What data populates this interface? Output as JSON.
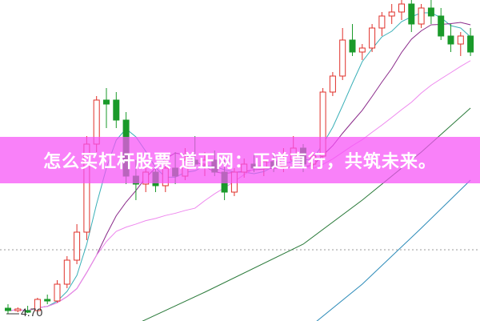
{
  "banner": {
    "text": "怎么买杠杆股票 道正网：正道直行，共筑未来。"
  },
  "chart_data": {
    "type": "candlestick",
    "title": "",
    "xlabel": "",
    "ylabel": "",
    "ylim": [
      4.6,
      8.6
    ],
    "grid": false,
    "reference_line": 5.48,
    "low_marker": {
      "label": "4.70",
      "value": 4.7
    },
    "colors": {
      "up": "#e0302a",
      "down": "#1a9a2a",
      "ma5": "#3bb0b8",
      "ma10": "#8a2a8a",
      "ma20": "#ee88ee",
      "ma_long1": "#2a7a3a",
      "ma_long2": "#2a8ab8"
    },
    "candles": [
      [
        4.75,
        4.8,
        4.68,
        4.72
      ],
      [
        4.72,
        4.76,
        4.7,
        4.74
      ],
      [
        4.72,
        4.78,
        4.69,
        4.7
      ],
      [
        4.72,
        4.88,
        4.7,
        4.86
      ],
      [
        4.86,
        4.92,
        4.8,
        4.84
      ],
      [
        4.84,
        5.1,
        4.82,
        5.05
      ],
      [
        5.05,
        5.4,
        5.0,
        5.35
      ],
      [
        5.35,
        5.8,
        5.3,
        5.7
      ],
      [
        5.7,
        6.9,
        5.6,
        6.8
      ],
      [
        6.8,
        7.4,
        6.7,
        7.35
      ],
      [
        7.35,
        7.5,
        7.0,
        7.3
      ],
      [
        7.35,
        7.45,
        7.0,
        7.1
      ],
      [
        7.1,
        7.2,
        6.3,
        6.4
      ],
      [
        6.4,
        6.6,
        6.1,
        6.3
      ],
      [
        6.3,
        6.55,
        6.2,
        6.45
      ],
      [
        6.45,
        6.5,
        6.2,
        6.28
      ],
      [
        6.28,
        6.6,
        6.2,
        6.5
      ],
      [
        6.5,
        6.7,
        6.3,
        6.4
      ],
      [
        6.4,
        6.75,
        6.35,
        6.6
      ],
      [
        6.6,
        6.9,
        6.5,
        6.55
      ],
      [
        6.55,
        6.7,
        6.4,
        6.6
      ],
      [
        6.6,
        6.72,
        6.4,
        6.45
      ],
      [
        6.45,
        6.6,
        6.1,
        6.2
      ],
      [
        6.2,
        6.5,
        6.15,
        6.45
      ],
      [
        6.45,
        6.62,
        6.38,
        6.55
      ],
      [
        6.55,
        6.68,
        6.45,
        6.5
      ],
      [
        6.5,
        6.6,
        6.4,
        6.58
      ],
      [
        6.58,
        6.7,
        6.45,
        6.52
      ],
      [
        6.52,
        6.75,
        6.45,
        6.6
      ],
      [
        6.6,
        6.9,
        6.5,
        6.75
      ],
      [
        6.75,
        6.8,
        6.45,
        6.55
      ],
      [
        6.55,
        6.7,
        6.5,
        6.65
      ],
      [
        6.65,
        7.5,
        6.6,
        7.45
      ],
      [
        7.45,
        7.7,
        7.4,
        7.65
      ],
      [
        7.65,
        8.25,
        7.6,
        8.1
      ],
      [
        8.1,
        8.3,
        7.9,
        7.95
      ],
      [
        7.95,
        8.05,
        7.85,
        8.0
      ],
      [
        8.0,
        8.3,
        7.95,
        8.25
      ],
      [
        8.25,
        8.45,
        8.15,
        8.4
      ],
      [
        8.4,
        8.55,
        8.3,
        8.45
      ],
      [
        8.45,
        8.62,
        8.35,
        8.55
      ],
      [
        8.55,
        8.62,
        8.2,
        8.3
      ],
      [
        8.3,
        8.55,
        8.25,
        8.5
      ],
      [
        8.5,
        8.6,
        8.3,
        8.4
      ],
      [
        8.4,
        8.5,
        8.1,
        8.15
      ],
      [
        8.15,
        8.3,
        7.95,
        8.05
      ],
      [
        8.05,
        8.2,
        7.9,
        8.15
      ],
      [
        8.15,
        8.25,
        7.9,
        7.95
      ]
    ],
    "ma_long1": [
      [
        13,
        4.55
      ],
      [
        20,
        4.95
      ],
      [
        30,
        5.55
      ],
      [
        36,
        6.1
      ],
      [
        42,
        6.7
      ],
      [
        47,
        7.25
      ]
    ],
    "ma_long2": [
      [
        31,
        4.55
      ],
      [
        36,
        5.05
      ],
      [
        42,
        5.75
      ],
      [
        47,
        6.35
      ]
    ]
  }
}
